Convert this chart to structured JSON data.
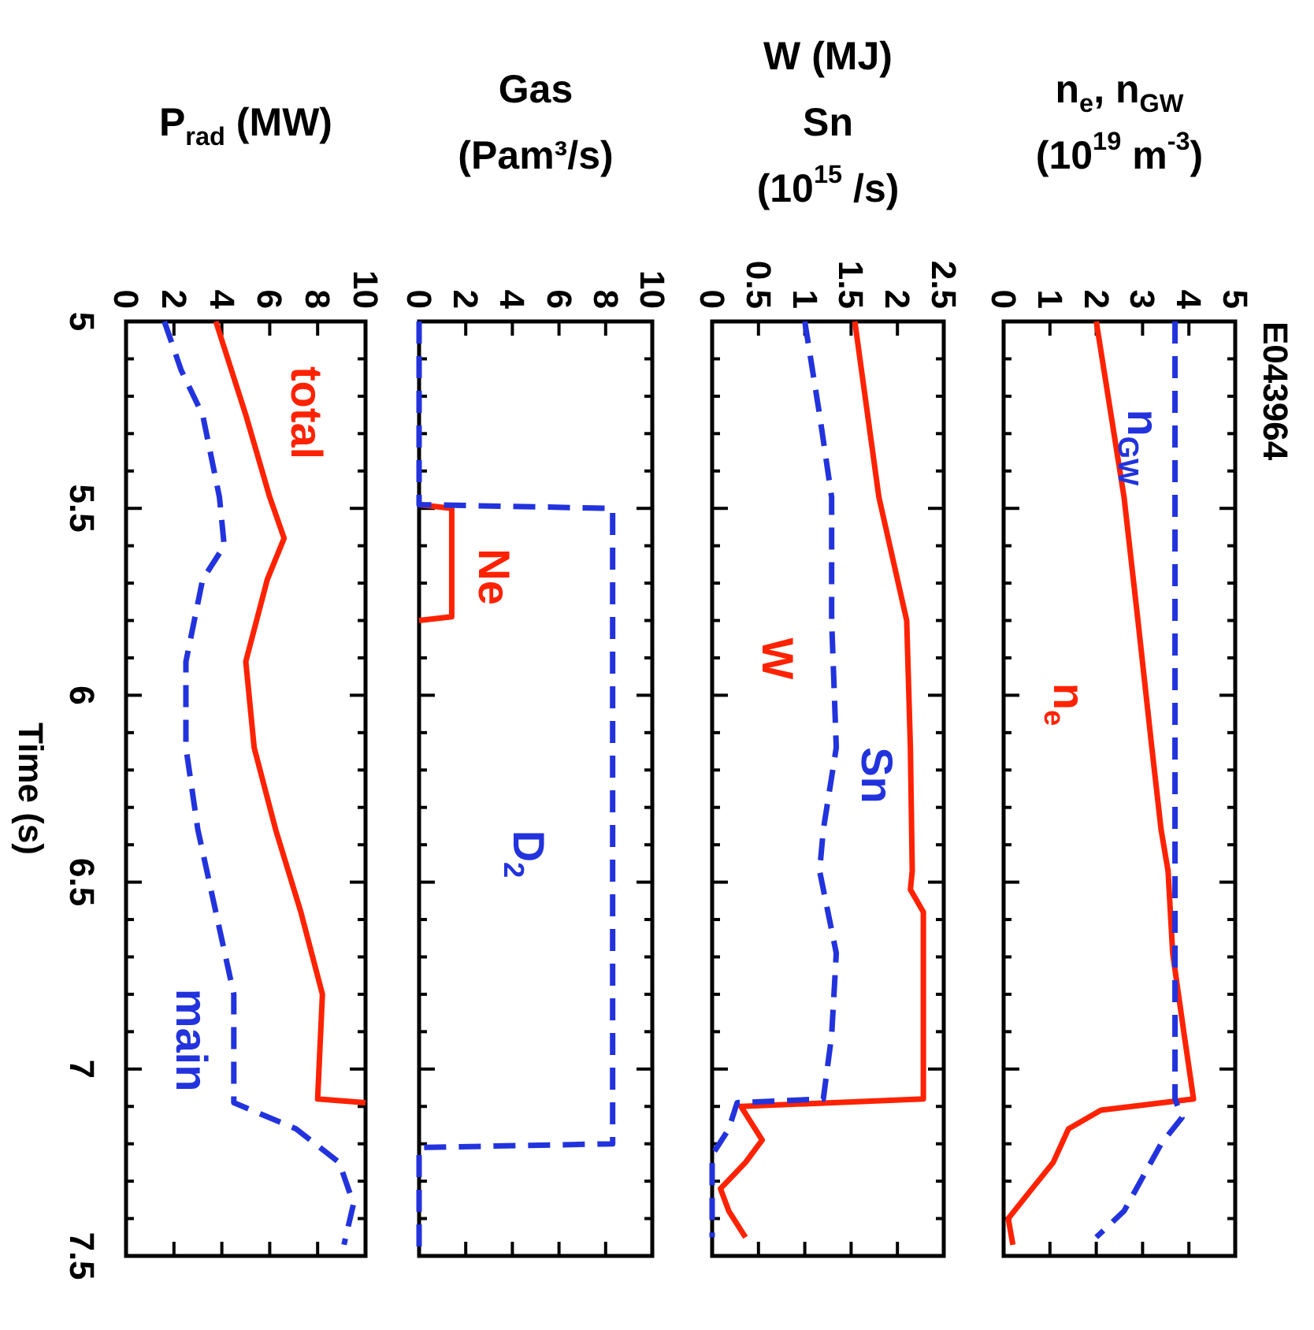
{
  "chart_data": [
    {
      "type": "line",
      "xlabel": "P$_{rad}$ (MW)",
      "ylabel": "Time (s)",
      "ylim": [
        7.5,
        5
      ],
      "xlim": [
        0,
        10
      ],
      "xticks": [
        0,
        2,
        4,
        6,
        8,
        10
      ],
      "yticks": [
        5,
        {
          "value": 5.1,
          "label": null
        },
        {
          "value": 5.2,
          "label": null
        },
        {
          "value": 5.3,
          "label": null
        },
        {
          "value": 5.4,
          "label": null
        },
        5.5,
        {
          "value": 5.6,
          "label": null
        },
        {
          "value": 5.7,
          "label": null
        },
        {
          "value": 5.8,
          "label": null
        },
        {
          "value": 5.9,
          "label": null
        },
        6,
        {
          "value": 6.1,
          "label": null
        },
        {
          "value": 6.2,
          "label": null
        },
        {
          "value": 6.3,
          "label": null
        },
        {
          "value": 6.4,
          "label": null
        },
        6.5,
        {
          "value": 6.6,
          "label": null
        },
        {
          "value": 6.7,
          "label": null
        },
        {
          "value": 6.8,
          "label": null
        },
        {
          "value": 6.9,
          "label": null
        },
        7,
        {
          "value": 7.1,
          "label": null
        },
        {
          "value": 7.2,
          "label": null
        },
        {
          "value": 7.3,
          "label": null
        },
        {
          "value": 7.4,
          "label": null
        },
        7.5
      ],
      "series": [
        {
          "name": "total",
          "color": "#ff2200",
          "line_style": "solid",
          "values": [
            5,
            5.25,
            5.47,
            5.58,
            5.69,
            5.91,
            6.14,
            6.36,
            6.58,
            6.8,
            7.08,
            7.09
          ],
          "x": [
            3.75,
            5.0,
            6.0,
            6.6,
            5.9,
            5.0,
            5.35,
            6.25,
            7.3,
            8.2,
            8.0,
            10
          ]
        },
        {
          "name": "main",
          "color": "#2233dd",
          "line_style": "dashed",
          "values": [
            5,
            5.13,
            5.25,
            5.47,
            5.6,
            5.69,
            5.91,
            6.14,
            6.36,
            6.58,
            6.8,
            7.09,
            7.16,
            7.25,
            7.36,
            7.47
          ],
          "x": [
            1.6,
            2.3,
            3.2,
            3.9,
            4.1,
            3.2,
            2.5,
            2.5,
            3.0,
            3.75,
            4.5,
            4.5,
            7.1,
            8.9,
            9.5,
            9.1
          ]
        }
      ]
    },
    {
      "type": "line",
      "xlabel": "Gas\n(Pam³/s)",
      "ylim": [
        7.5,
        5
      ],
      "xlim": [
        0,
        10
      ],
      "xticks": [
        0,
        2,
        4,
        6,
        8,
        10
      ],
      "tick_labels": "x",
      "yticks": [
        5,
        {
          "value": 5.1,
          "label": null
        },
        {
          "value": 5.2,
          "label": null
        },
        {
          "value": 5.3,
          "label": null
        },
        {
          "value": 5.4,
          "label": null
        },
        5.5,
        {
          "value": 5.6,
          "label": null
        },
        {
          "value": 5.7,
          "label": null
        },
        {
          "value": 5.8,
          "label": null
        },
        {
          "value": 5.9,
          "label": null
        },
        6,
        {
          "value": 6.1,
          "label": null
        },
        {
          "value": 6.2,
          "label": null
        },
        {
          "value": 6.3,
          "label": null
        },
        {
          "value": 6.4,
          "label": null
        },
        6.5,
        {
          "value": 6.6,
          "label": null
        },
        {
          "value": 6.7,
          "label": null
        },
        {
          "value": 6.8,
          "label": null
        },
        {
          "value": 6.9,
          "label": null
        },
        7,
        {
          "value": 7.1,
          "label": null
        },
        {
          "value": 7.2,
          "label": null
        },
        {
          "value": 7.3,
          "label": null
        },
        {
          "value": 7.4,
          "label": null
        },
        7.5
      ],
      "series": [
        {
          "name": "Ne",
          "color": "#ff2200",
          "line_style": "solid",
          "values": [
            5.49,
            5.5,
            5.79,
            5.8
          ],
          "x": [
            0,
            1.4,
            1.4,
            0
          ]
        },
        {
          "name": "D$_{2}$",
          "color": "#2233dd",
          "line_style": "dashed",
          "values": [
            5,
            5.49,
            5.5,
            7.2,
            7.21,
            7.5
          ],
          "x": [
            0,
            0,
            8.3,
            8.3,
            0,
            0
          ]
        }
      ]
    },
    {
      "type": "line",
      "xlabel": "W (MJ)\nSn\n(10$^{15}$ /s)",
      "ylim": [
        7.5,
        5
      ],
      "xlim": [
        0,
        2.5
      ],
      "xticks": [
        0,
        0.5,
        1,
        1.5,
        2,
        2.5
      ],
      "tick_labels": "x",
      "yticks": [
        5,
        {
          "value": 5.1,
          "label": null
        },
        {
          "value": 5.2,
          "label": null
        },
        {
          "value": 5.3,
          "label": null
        },
        {
          "value": 5.4,
          "label": null
        },
        5.5,
        {
          "value": 5.6,
          "label": null
        },
        {
          "value": 5.7,
          "label": null
        },
        {
          "value": 5.8,
          "label": null
        },
        {
          "value": 5.9,
          "label": null
        },
        6,
        {
          "value": 6.1,
          "label": null
        },
        {
          "value": 6.2,
          "label": null
        },
        {
          "value": 6.3,
          "label": null
        },
        {
          "value": 6.4,
          "label": null
        },
        6.5,
        {
          "value": 6.6,
          "label": null
        },
        {
          "value": 6.7,
          "label": null
        },
        {
          "value": 6.8,
          "label": null
        },
        {
          "value": 6.9,
          "label": null
        },
        7,
        {
          "value": 7.1,
          "label": null
        },
        {
          "value": 7.2,
          "label": null
        },
        {
          "value": 7.3,
          "label": null
        },
        {
          "value": 7.4,
          "label": null
        },
        7.5
      ],
      "series": [
        {
          "name": "W",
          "color": "#ff2200",
          "line_style": "solid",
          "values": [
            5,
            5.47,
            5.8,
            6.14,
            6.47,
            6.52,
            6.58,
            7.08,
            7.1,
            7.19,
            7.25,
            7.32,
            7.38,
            7.45
          ],
          "x": [
            1.54,
            1.8,
            2.1,
            2.14,
            2.16,
            2.14,
            2.28,
            2.28,
            0.31,
            0.54,
            0.36,
            0.09,
            0.18,
            0.36
          ]
        },
        {
          "name": "Sn",
          "color": "#2233dd",
          "line_style": "dashed",
          "values": [
            5,
            5.25,
            5.47,
            5.8,
            6.14,
            6.36,
            6.47,
            6.69,
            6.91,
            7.08,
            7.09,
            7.16,
            7.23,
            7.3,
            7.45
          ],
          "x": [
            1.0,
            1.16,
            1.29,
            1.29,
            1.34,
            1.2,
            1.16,
            1.34,
            1.29,
            1.2,
            0.27,
            0.18,
            0,
            0,
            0
          ]
        }
      ]
    },
    {
      "type": "line",
      "title": "E043964",
      "xlabel": "n$_{e}$, n$_{GW}$\n(10$^{19}$ m$^{-3}$)",
      "ylim": [
        7.5,
        5
      ],
      "xlim": [
        0,
        5
      ],
      "xticks": [
        0,
        1,
        2,
        3,
        4,
        5
      ],
      "tick_labels": "x",
      "yticks": [
        5,
        {
          "value": 5.1,
          "label": null
        },
        {
          "value": 5.2,
          "label": null
        },
        {
          "value": 5.3,
          "label": null
        },
        {
          "value": 5.4,
          "label": null
        },
        5.5,
        {
          "value": 5.6,
          "label": null
        },
        {
          "value": 5.7,
          "label": null
        },
        {
          "value": 5.8,
          "label": null
        },
        {
          "value": 5.9,
          "label": null
        },
        6,
        {
          "value": 6.1,
          "label": null
        },
        {
          "value": 6.2,
          "label": null
        },
        {
          "value": 6.3,
          "label": null
        },
        {
          "value": 6.4,
          "label": null
        },
        6.5,
        {
          "value": 6.6,
          "label": null
        },
        {
          "value": 6.7,
          "label": null
        },
        {
          "value": 6.8,
          "label": null
        },
        {
          "value": 6.9,
          "label": null
        },
        7,
        {
          "value": 7.1,
          "label": null
        },
        {
          "value": 7.2,
          "label": null
        },
        {
          "value": 7.3,
          "label": null
        },
        {
          "value": 7.4,
          "label": null
        },
        7.5
      ],
      "series": [
        {
          "name": "n$_{e}$",
          "color": "#ff2200",
          "line_style": "solid",
          "values": [
            5,
            5.47,
            5.8,
            6.14,
            6.36,
            6.47,
            6.69,
            6.91,
            7.08,
            7.11,
            7.16,
            7.25,
            7.33,
            7.4,
            7.47
          ],
          "x": [
            2.0,
            2.6,
            2.9,
            3.2,
            3.4,
            3.55,
            3.65,
            3.9,
            4.1,
            2.1,
            1.4,
            1.07,
            0.55,
            0.1,
            0.2
          ]
        },
        {
          "name": "n$_{GW}$",
          "color": "#2233dd",
          "line_style": "dashed",
          "values": [
            5,
            5.5,
            6,
            6.5,
            7.08,
            7.13,
            7.2,
            7.29,
            7.38,
            7.45
          ],
          "x": [
            3.7,
            3.7,
            3.7,
            3.7,
            3.7,
            3.85,
            3.4,
            3.0,
            2.6,
            2.0
          ]
        }
      ]
    }
  ]
}
